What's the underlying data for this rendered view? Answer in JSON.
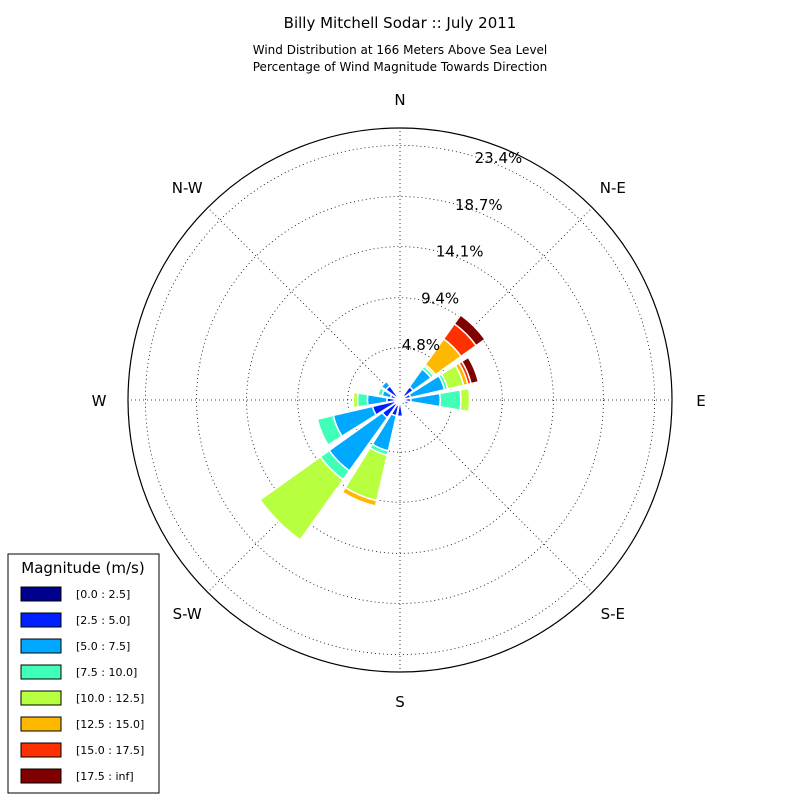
{
  "chart_data": {
    "type": "windrose",
    "title": "Billy Mitchell Sodar :: July 2011",
    "subtitle_lines": [
      "Wind Distribution at 166 Meters Above Sea Level",
      "Percentage of Wind Magnitude Towards Direction"
    ],
    "direction_labels": [
      "N",
      "N-E",
      "E",
      "S-E",
      "S",
      "S-W",
      "W",
      "N-W"
    ],
    "ring_labels": [
      "4.8%",
      "9.4%",
      "14.1%",
      "18.7%",
      "23.4%"
    ],
    "ring_values": [
      4.8,
      9.4,
      14.1,
      18.7,
      23.4
    ],
    "rmax": 25.0,
    "grid": true,
    "legend_position": "bottom-left",
    "legend": {
      "title": "Magnitude (m/s)",
      "bins": [
        {
          "label": "[0.0 : 2.5]",
          "color": "#00008f"
        },
        {
          "label": "[2.5 : 5.0]",
          "color": "#0020ff"
        },
        {
          "label": "[5.0 : 7.5]",
          "color": "#00a8ff"
        },
        {
          "label": "[7.5 : 10.0]",
          "color": "#40ffb8"
        },
        {
          "label": "[10.0 : 12.5]",
          "color": "#b8ff40"
        },
        {
          "label": "[12.5 : 15.0]",
          "color": "#ffb800"
        },
        {
          "label": "[15.0 : 17.5]",
          "color": "#ff3000"
        },
        {
          "label": "[17.5 : inf]",
          "color": "#800000"
        }
      ]
    },
    "sectors": [
      {
        "direction": 0,
        "cumulative": [
          0.2,
          0.4
        ]
      },
      {
        "direction": 45,
        "cumulative": [
          0.5,
          1.5,
          3.5,
          3.8,
          4.0,
          6.9,
          8.6,
          9.6
        ]
      },
      {
        "direction": 67.5,
        "cumulative": [
          0.4,
          1.0,
          4.2,
          4.5,
          6.0,
          6.4,
          6.7,
          7.4
        ]
      },
      {
        "direction": 90,
        "cumulative": [
          0.3,
          1.0,
          3.7,
          5.6,
          6.4
        ]
      },
      {
        "direction": 112.5,
        "cumulative": [
          0.2,
          0.8
        ]
      },
      {
        "direction": 180,
        "cumulative": [
          0.3,
          1.5
        ]
      },
      {
        "direction": 202.5,
        "cumulative": [
          0.5,
          1.5,
          4.8,
          5.2,
          9.5,
          10.0
        ]
      },
      {
        "direction": 225,
        "cumulative": [
          0.5,
          2.0,
          8.0,
          9.0,
          15.8
        ]
      },
      {
        "direction": 247.5,
        "cumulative": [
          0.5,
          2.6,
          6.3,
          7.8
        ]
      },
      {
        "direction": 270,
        "cumulative": [
          0.3,
          1.2,
          3.0,
          3.9,
          4.3
        ]
      },
      {
        "direction": 292.5,
        "cumulative": [
          0.2,
          0.9,
          1.7,
          2.1
        ]
      },
      {
        "direction": 315,
        "cumulative": [
          0.3,
          1.6,
          2.1
        ]
      }
    ]
  }
}
